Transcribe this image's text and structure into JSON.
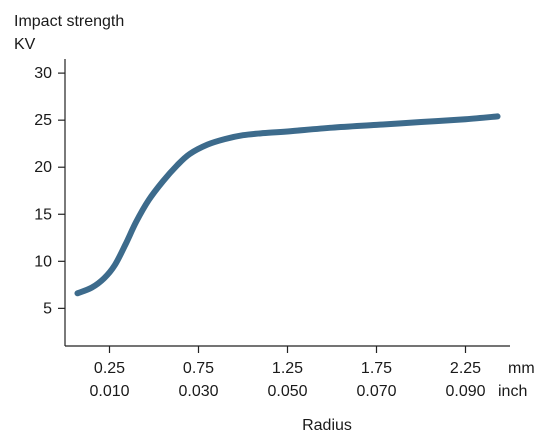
{
  "chart_data": {
    "type": "line",
    "ylabel_lines": [
      "Impact strength",
      "KV"
    ],
    "xlabel": "Radius",
    "x_unit_primary": "mm",
    "x_unit_secondary": "inch",
    "xlim": [
      0.0,
      2.5
    ],
    "ylim": [
      1,
      31.5
    ],
    "x_ticks": [
      {
        "value": 0.25,
        "label_mm": "0.25",
        "label_inch": "0.010"
      },
      {
        "value": 0.75,
        "label_mm": "0.75",
        "label_inch": "0.030"
      },
      {
        "value": 1.25,
        "label_mm": "1.25",
        "label_inch": "0.050"
      },
      {
        "value": 1.75,
        "label_mm": "1.75",
        "label_inch": "0.070"
      },
      {
        "value": 2.25,
        "label_mm": "2.25",
        "label_inch": "0.090"
      }
    ],
    "y_ticks": [
      5,
      10,
      15,
      20,
      25,
      30
    ],
    "grid": false,
    "series": [
      {
        "color": "#3d6b8c",
        "points": [
          [
            0.07,
            6.6
          ],
          [
            0.15,
            7.2
          ],
          [
            0.22,
            8.2
          ],
          [
            0.28,
            9.6
          ],
          [
            0.34,
            11.8
          ],
          [
            0.4,
            14.2
          ],
          [
            0.47,
            16.5
          ],
          [
            0.55,
            18.5
          ],
          [
            0.63,
            20.2
          ],
          [
            0.7,
            21.4
          ],
          [
            0.8,
            22.4
          ],
          [
            0.9,
            23.0
          ],
          [
            1.0,
            23.4
          ],
          [
            1.1,
            23.6
          ],
          [
            1.25,
            23.8
          ],
          [
            1.5,
            24.2
          ],
          [
            1.75,
            24.5
          ],
          [
            2.0,
            24.8
          ],
          [
            2.25,
            25.1
          ],
          [
            2.43,
            25.4
          ]
        ]
      }
    ]
  }
}
